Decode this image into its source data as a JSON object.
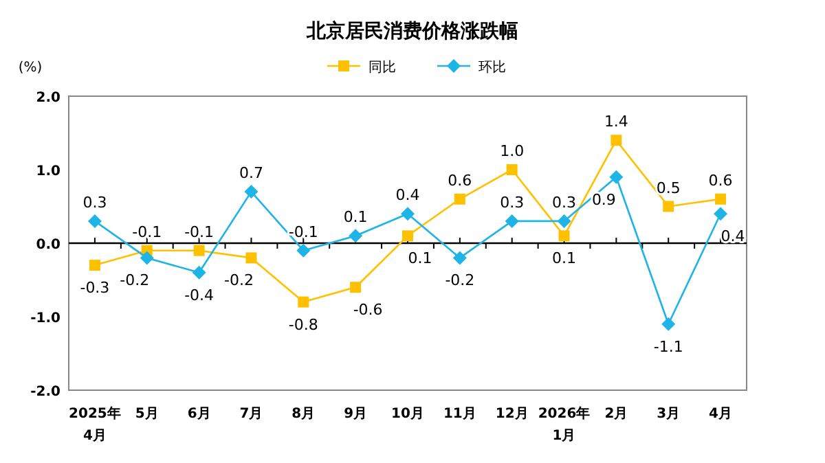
{
  "chart_data": {
    "type": "line",
    "title": "北京居民消费价格涨跌幅",
    "ylabel": "(%)",
    "categories": [
      "2025年\n4月",
      "5月",
      "6月",
      "7月",
      "8月",
      "9月",
      "10月",
      "11月",
      "12月",
      "2026年\n1月",
      "2月",
      "3月",
      "4月"
    ],
    "series": [
      {
        "name": "同比",
        "color": "#ffc000",
        "marker": "square",
        "values": [
          -0.3,
          -0.1,
          -0.1,
          -0.2,
          -0.8,
          -0.6,
          0.1,
          0.6,
          1.0,
          0.1,
          1.4,
          0.5,
          0.6
        ],
        "value_labels": [
          "-0.3",
          "-0.1",
          "-0.1",
          "-0.2",
          "-0.8",
          "-0.6",
          "0.1",
          "0.6",
          "1.0",
          "0.1",
          "1.4",
          "0.5",
          "0.6"
        ]
      },
      {
        "name": "环比",
        "color": "#1eb4e6",
        "marker": "diamond",
        "values": [
          0.3,
          -0.2,
          -0.4,
          0.7,
          -0.1,
          0.1,
          0.4,
          -0.2,
          0.3,
          0.3,
          0.9,
          -1.1,
          0.4
        ],
        "value_labels": [
          "0.3",
          "-0.2",
          "-0.4",
          "0.7",
          "-0.1",
          "0.1",
          "0.4",
          "-0.2",
          "0.3",
          "0.3",
          "0.9",
          "-1.1",
          "0.4"
        ]
      }
    ],
    "ylim": [
      -2,
      2
    ],
    "yticks": [
      {
        "value": -2,
        "label": "-2.0"
      },
      {
        "value": -1,
        "label": "-1.0"
      },
      {
        "value": 0,
        "label": "0.0"
      },
      {
        "value": 1,
        "label": "1.0"
      },
      {
        "value": 2,
        "label": "2.0"
      }
    ],
    "legend": "top"
  }
}
